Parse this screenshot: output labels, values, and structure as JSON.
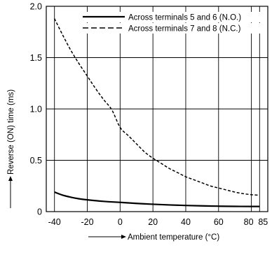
{
  "chart_data": {
    "type": "line",
    "title": "",
    "xlabel": "Ambient temperature (°C)",
    "ylabel": "Reverse (ON) time (ms)",
    "xlim": [
      -45,
      90
    ],
    "ylim": [
      0,
      2.0
    ],
    "x_ticks": [
      -40,
      -20,
      0,
      20,
      40,
      60,
      80,
      85
    ],
    "x_tick_labels": [
      "-40",
      "-20",
      "0",
      "20",
      "40",
      "60",
      "80",
      "85"
    ],
    "y_ticks": [
      0,
      0.5,
      1.0,
      1.5,
      2.0
    ],
    "y_tick_labels": [
      "0",
      "0.5",
      "1.0",
      "1.5",
      "2.0"
    ],
    "grid": true,
    "legend_position": "top-right",
    "series": [
      {
        "name": "Across terminals 5 and 6 (N.O.)",
        "style": "solid",
        "color": "#000000",
        "x": [
          -40,
          -35,
          -30,
          -25,
          -20,
          -10,
          0,
          10,
          20,
          30,
          40,
          50,
          60,
          70,
          80,
          85
        ],
        "y": [
          0.19,
          0.16,
          0.14,
          0.125,
          0.115,
          0.1,
          0.09,
          0.08,
          0.072,
          0.065,
          0.06,
          0.056,
          0.053,
          0.051,
          0.05,
          0.05
        ]
      },
      {
        "name": "Across terminals 7 and 8 (N.C.)",
        "style": "dashed",
        "color": "#000000",
        "x": [
          -40,
          -35,
          -30,
          -25,
          -20,
          -15,
          -10,
          -5,
          0,
          5,
          10,
          15,
          20,
          25,
          30,
          35,
          40,
          45,
          50,
          55,
          60,
          65,
          70,
          75,
          80,
          85
        ],
        "y": [
          1.88,
          1.72,
          1.57,
          1.44,
          1.32,
          1.2,
          1.09,
          0.99,
          0.82,
          0.74,
          0.66,
          0.58,
          0.52,
          0.47,
          0.42,
          0.38,
          0.34,
          0.31,
          0.28,
          0.25,
          0.23,
          0.21,
          0.19,
          0.175,
          0.165,
          0.16
        ]
      }
    ]
  }
}
